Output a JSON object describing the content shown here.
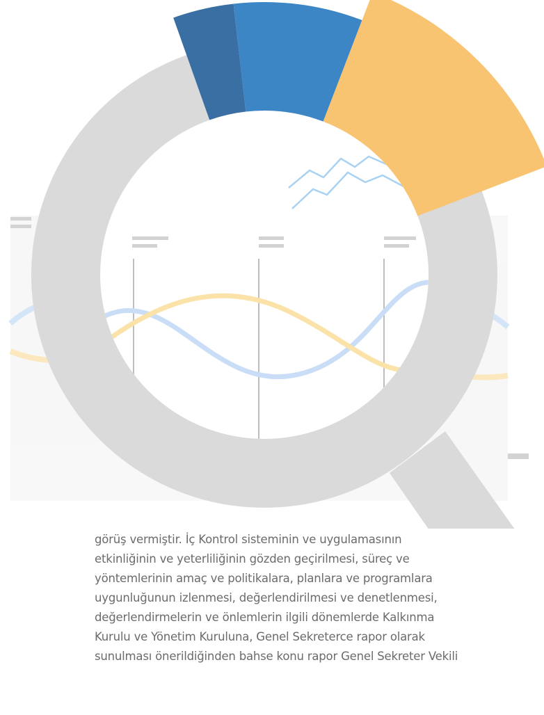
{
  "body": {
    "lines": [
      "görüş vermiştir. İç Kontrol sisteminin ve uygulamasının",
      "etkinliğinin ve yeterliliğinin gözden geçirilmesi, süreç ve",
      "yöntemlerinin amaç ve politikalara, planlara ve programlara",
      "uygunluğunun izlenmesi, değerlendirilmesi ve denetlenmesi,",
      "değerlendirmelerin ve önlemlerin ilgili dönemlerde Kalkınma",
      "Kurulu ve Yönetim Kuruluna, Genel Sekreterce rapor olarak",
      "sunulması önerildiğinden bahse konu rapor Genel Sekreter Vekili"
    ]
  }
}
